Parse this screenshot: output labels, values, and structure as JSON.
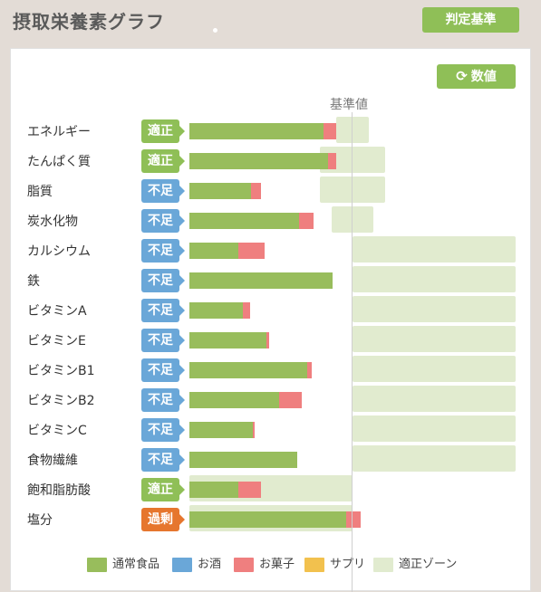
{
  "header": {
    "title": "摂取栄養素グラフ",
    "criteria_button": "判定基準"
  },
  "toolbar": {
    "value_button": "数値",
    "value_icon": "refresh-icon"
  },
  "chart": {
    "reference_label": "基準値"
  },
  "colors": {
    "food": "#98bd5c",
    "alcohol": "#6aa7d8",
    "snack": "#ef7f7f",
    "supplement": "#f2c14e",
    "zone": "#e1ebcf",
    "status_ok": "#8fbf57",
    "status_low": "#6aa7d8",
    "status_over": "#e6762e"
  },
  "nutrients": [
    {
      "name": "エネルギー",
      "status": "適正",
      "status_type": "ok",
      "food": 0.82,
      "snack": 0.08,
      "zone": [
        0.9,
        1.1
      ]
    },
    {
      "name": "たんぱく質",
      "status": "適正",
      "status_type": "ok",
      "food": 0.85,
      "snack": 0.05,
      "zone": [
        0.8,
        1.2
      ]
    },
    {
      "name": "脂質",
      "status": "不足",
      "status_type": "low",
      "food": 0.38,
      "snack": 0.06,
      "zone": [
        0.8,
        1.2
      ]
    },
    {
      "name": "炭水化物",
      "status": "不足",
      "status_type": "low",
      "food": 0.67,
      "snack": 0.09,
      "zone": [
        0.87,
        1.13
      ]
    },
    {
      "name": "カルシウム",
      "status": "不足",
      "status_type": "low",
      "food": 0.3,
      "snack": 0.16,
      "zone": [
        1.0,
        2.0
      ]
    },
    {
      "name": "鉄",
      "status": "不足",
      "status_type": "low",
      "food": 0.88,
      "snack": 0.0,
      "zone": [
        1.0,
        2.0
      ]
    },
    {
      "name": "ビタミンA",
      "status": "不足",
      "status_type": "low",
      "food": 0.33,
      "snack": 0.04,
      "zone": [
        1.0,
        2.0
      ]
    },
    {
      "name": "ビタミンE",
      "status": "不足",
      "status_type": "low",
      "food": 0.47,
      "snack": 0.02,
      "zone": [
        1.0,
        2.0
      ]
    },
    {
      "name": "ビタミンB1",
      "status": "不足",
      "status_type": "low",
      "food": 0.72,
      "snack": 0.03,
      "zone": [
        1.0,
        2.0
      ]
    },
    {
      "name": "ビタミンB2",
      "status": "不足",
      "status_type": "low",
      "food": 0.55,
      "snack": 0.14,
      "zone": [
        1.0,
        2.0
      ]
    },
    {
      "name": "ビタミンC",
      "status": "不足",
      "status_type": "low",
      "food": 0.39,
      "snack": 0.01,
      "zone": [
        1.0,
        2.0
      ]
    },
    {
      "name": "食物繊維",
      "status": "不足",
      "status_type": "low",
      "food": 0.66,
      "snack": 0.0,
      "zone": [
        1.0,
        2.0
      ]
    },
    {
      "name": "飽和脂肪酸",
      "status": "適正",
      "status_type": "ok",
      "food": 0.3,
      "snack": 0.14,
      "zone": [
        0.0,
        1.0
      ]
    },
    {
      "name": "塩分",
      "status": "過剰",
      "status_type": "over",
      "food": 0.96,
      "snack": 0.09,
      "zone": [
        0.0,
        1.0
      ]
    }
  ],
  "legend": [
    {
      "label": "通常食品",
      "key": "food"
    },
    {
      "label": "お酒",
      "key": "alcohol"
    },
    {
      "label": "お菓子",
      "key": "snack"
    },
    {
      "label": "サプリ",
      "key": "supplement"
    },
    {
      "label": "適正ゾーン",
      "key": "zone"
    }
  ]
}
